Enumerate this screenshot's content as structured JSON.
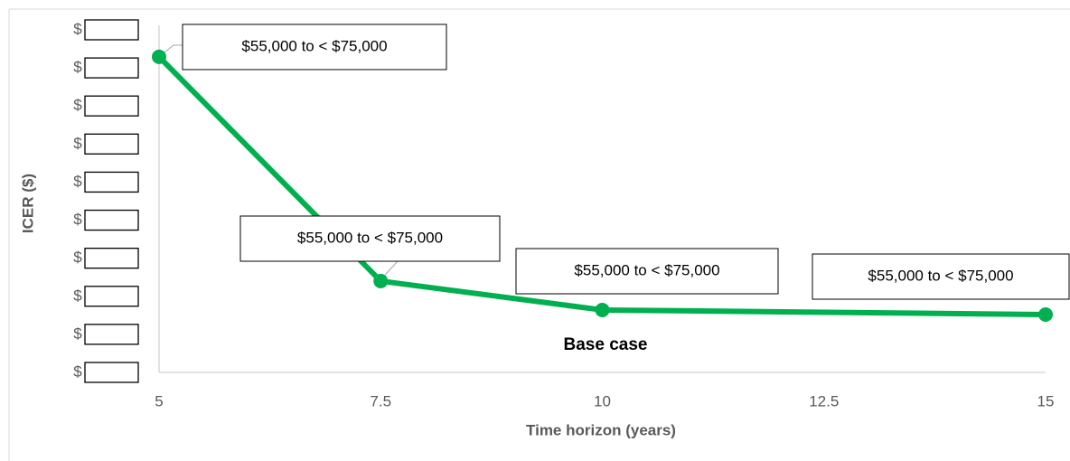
{
  "chart_data": {
    "type": "line",
    "x_label": "Time horizon (years)",
    "y_label": "ICER ($)",
    "x": [
      5,
      7.5,
      10,
      15
    ],
    "series": [
      {
        "name": "ICER",
        "color": "#00b050",
        "values": [
          8.29,
          2.4,
          1.64,
          1.52
        ]
      }
    ],
    "xlim": [
      5,
      15
    ],
    "xticks": [
      5,
      7.5,
      10,
      12.5,
      15
    ],
    "ylim": [
      0,
      9
    ],
    "yticks": [
      {
        "value": 0,
        "label": "$"
      },
      {
        "value": 1,
        "label": "$"
      },
      {
        "value": 2,
        "label": "$"
      },
      {
        "value": 3,
        "label": "$"
      },
      {
        "value": 4,
        "label": "$"
      },
      {
        "value": 5,
        "label": "$"
      },
      {
        "value": 6,
        "label": "$"
      },
      {
        "value": 7,
        "label": "$"
      },
      {
        "value": 8,
        "label": "$"
      },
      {
        "value": 9,
        "label": "$"
      }
    ],
    "grid": false,
    "point_labels": [
      "$55,000 to < $75,000",
      "$55,000 to < $75,000",
      "$55,000 to < $75,000",
      "$55,000 to < $75,000"
    ],
    "annotation": "Base case"
  }
}
